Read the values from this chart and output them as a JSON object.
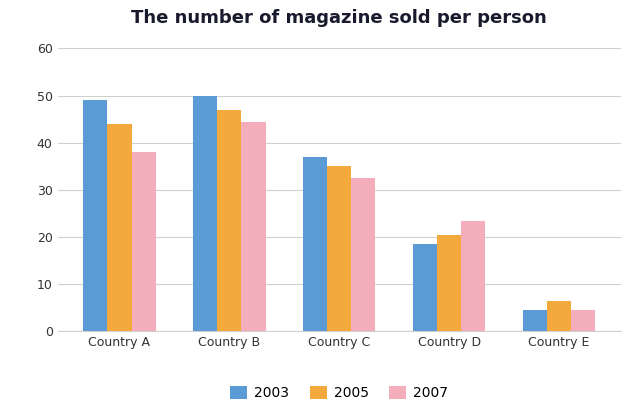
{
  "title": "The number of magazine sold per person",
  "categories": [
    "Country A",
    "Country B",
    "Country C",
    "Country D",
    "Country E"
  ],
  "series": {
    "2003": [
      49,
      50,
      37,
      18.5,
      4.5
    ],
    "2005": [
      44,
      47,
      35,
      20.5,
      6.5
    ],
    "2007": [
      38,
      44.5,
      32.5,
      23.5,
      4.5
    ]
  },
  "colors": {
    "2003": "#5B9BD5",
    "2005": "#F4A93D",
    "2007": "#F4AEBB"
  },
  "ylim": [
    0,
    60
  ],
  "yticks": [
    0,
    10,
    20,
    30,
    40,
    50,
    60
  ],
  "legend_labels": [
    "2003",
    "2005",
    "2007"
  ],
  "bar_width": 0.22,
  "background_color": "#ffffff",
  "title_fontsize": 13,
  "tick_fontsize": 9,
  "legend_fontsize": 10,
  "grid_color": "#d0d0d0",
  "title_fontweight": "bold",
  "title_color": "#1a1a2e"
}
